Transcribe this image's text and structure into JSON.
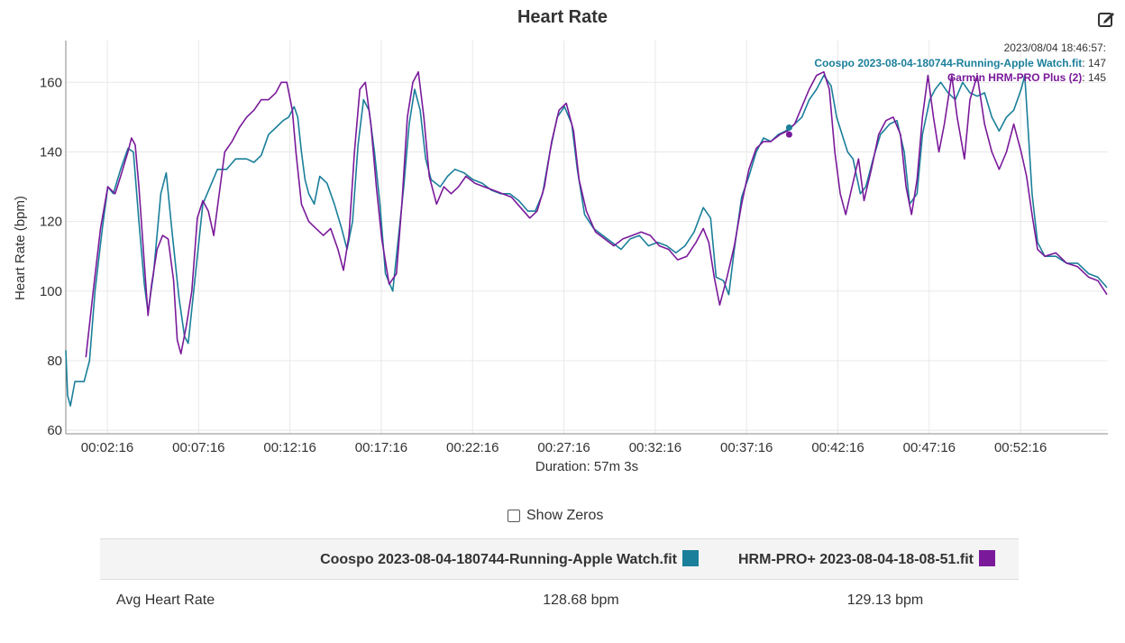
{
  "header": {
    "title": "Heart Rate",
    "edit_icon": "edit-icon"
  },
  "colors": {
    "series1": "#1a7f9a",
    "series2": "#7a1a9a",
    "grid": "#e8e8e8",
    "axis": "#888888"
  },
  "tooltip": {
    "time": "2023/08/04 18:46:57:",
    "rows": [
      {
        "label": "Coospo 2023-08-04-180744-Running-Apple Watch.fit",
        "value": "147"
      },
      {
        "label": "Garmin HRM-PRO Plus (2)",
        "value": "145"
      }
    ]
  },
  "show_zeros": {
    "label": "Show Zeros",
    "checked": false
  },
  "stats_table": {
    "headers": [
      "",
      "Coospo 2023-08-04-180744-Running-Apple Watch.fit",
      "HRM-PRO+ 2023-08-04-18-08-51.fit"
    ],
    "rows": [
      {
        "label": "Avg Heart Rate",
        "values": [
          "128.68 bpm",
          "129.13 bpm"
        ]
      }
    ]
  },
  "chart_data": {
    "type": "line",
    "title": "Heart Rate",
    "xlabel": "Duration: 57m 3s",
    "ylabel": "Heart Rate (bpm)",
    "xlim": [
      0,
      57.05
    ],
    "ylim": [
      59,
      172
    ],
    "yticks": [
      60,
      80,
      100,
      120,
      140,
      160
    ],
    "xticks": [
      {
        "t": 2.27,
        "label": "00:02:16"
      },
      {
        "t": 7.27,
        "label": "00:07:16"
      },
      {
        "t": 12.27,
        "label": "00:12:16"
      },
      {
        "t": 17.27,
        "label": "00:17:16"
      },
      {
        "t": 22.27,
        "label": "00:22:16"
      },
      {
        "t": 27.27,
        "label": "00:27:16"
      },
      {
        "t": 32.27,
        "label": "00:32:16"
      },
      {
        "t": 37.27,
        "label": "00:37:16"
      },
      {
        "t": 42.27,
        "label": "00:42:16"
      },
      {
        "t": 47.27,
        "label": "00:47:16"
      },
      {
        "t": 52.27,
        "label": "00:52:16"
      }
    ],
    "grid": true,
    "legend": "none",
    "series": [
      {
        "name": "Coospo 2023-08-04-180744-Running-Apple Watch.fit",
        "color": "#1a7f9a",
        "points": [
          [
            0,
            83
          ],
          [
            0.1,
            70
          ],
          [
            0.25,
            67
          ],
          [
            0.5,
            74
          ],
          [
            1,
            74
          ],
          [
            1.3,
            80
          ],
          [
            1.6,
            100
          ],
          [
            2,
            118
          ],
          [
            2.3,
            130
          ],
          [
            2.6,
            128
          ],
          [
            3,
            135
          ],
          [
            3.4,
            141
          ],
          [
            3.7,
            140
          ],
          [
            4,
            120
          ],
          [
            4.3,
            102
          ],
          [
            4.5,
            94
          ],
          [
            4.8,
            105
          ],
          [
            5.2,
            128
          ],
          [
            5.5,
            134
          ],
          [
            5.8,
            118
          ],
          [
            6.2,
            98
          ],
          [
            6.5,
            87
          ],
          [
            6.7,
            85
          ],
          [
            7.1,
            105
          ],
          [
            7.5,
            125
          ],
          [
            7.9,
            130
          ],
          [
            8.3,
            135
          ],
          [
            8.8,
            135
          ],
          [
            9.3,
            138
          ],
          [
            9.9,
            138
          ],
          [
            10.3,
            137
          ],
          [
            10.7,
            139
          ],
          [
            11.1,
            145
          ],
          [
            11.5,
            147
          ],
          [
            11.9,
            149
          ],
          [
            12.2,
            150
          ],
          [
            12.5,
            153
          ],
          [
            12.7,
            150
          ],
          [
            12.9,
            140
          ],
          [
            13.1,
            132
          ],
          [
            13.3,
            128
          ],
          [
            13.6,
            125
          ],
          [
            13.9,
            133
          ],
          [
            14.3,
            131
          ],
          [
            14.7,
            125
          ],
          [
            15.1,
            118
          ],
          [
            15.4,
            112
          ],
          [
            15.7,
            120
          ],
          [
            16,
            142
          ],
          [
            16.3,
            155
          ],
          [
            16.6,
            152
          ],
          [
            16.9,
            140
          ],
          [
            17.2,
            125
          ],
          [
            17.5,
            105
          ],
          [
            17.9,
            100
          ],
          [
            18.2,
            115
          ],
          [
            18.5,
            130
          ],
          [
            18.8,
            148
          ],
          [
            19.1,
            158
          ],
          [
            19.4,
            152
          ],
          [
            19.7,
            138
          ],
          [
            20,
            132
          ],
          [
            20.5,
            130
          ],
          [
            20.9,
            133
          ],
          [
            21.3,
            135
          ],
          [
            21.8,
            134
          ],
          [
            22.3,
            132
          ],
          [
            22.8,
            131
          ],
          [
            23.3,
            129
          ],
          [
            23.8,
            128
          ],
          [
            24.3,
            128
          ],
          [
            24.8,
            126
          ],
          [
            25.3,
            123
          ],
          [
            25.7,
            123
          ],
          [
            26.1,
            128
          ],
          [
            26.5,
            140
          ],
          [
            26.9,
            150
          ],
          [
            27.3,
            153
          ],
          [
            27.7,
            148
          ],
          [
            28,
            135
          ],
          [
            28.4,
            122
          ],
          [
            28.9,
            118
          ],
          [
            29.4,
            116
          ],
          [
            29.9,
            114
          ],
          [
            30.4,
            112
          ],
          [
            30.9,
            115
          ],
          [
            31.4,
            116
          ],
          [
            31.9,
            113
          ],
          [
            32.4,
            114
          ],
          [
            32.9,
            113
          ],
          [
            33.4,
            111
          ],
          [
            33.9,
            113
          ],
          [
            34.4,
            117
          ],
          [
            34.9,
            124
          ],
          [
            35.3,
            121
          ],
          [
            35.6,
            104
          ],
          [
            36,
            103
          ],
          [
            36.3,
            99
          ],
          [
            36.6,
            112
          ],
          [
            37,
            127
          ],
          [
            37.4,
            133
          ],
          [
            37.8,
            140
          ],
          [
            38.2,
            144
          ],
          [
            38.6,
            143
          ],
          [
            39,
            145
          ],
          [
            39.4,
            146
          ],
          [
            39.9,
            148
          ],
          [
            40.3,
            150
          ],
          [
            40.7,
            155
          ],
          [
            41.1,
            158
          ],
          [
            41.5,
            162
          ],
          [
            41.9,
            159
          ],
          [
            42.2,
            150
          ],
          [
            42.5,
            145
          ],
          [
            42.8,
            140
          ],
          [
            43.1,
            138
          ],
          [
            43.5,
            128
          ],
          [
            43.8,
            130
          ],
          [
            44.2,
            138
          ],
          [
            44.6,
            145
          ],
          [
            45.1,
            148
          ],
          [
            45.5,
            149
          ],
          [
            45.9,
            140
          ],
          [
            46.2,
            125
          ],
          [
            46.6,
            128
          ],
          [
            46.9,
            145
          ],
          [
            47.3,
            155
          ],
          [
            47.6,
            158
          ],
          [
            47.9,
            160
          ],
          [
            48.3,
            157
          ],
          [
            48.7,
            155
          ],
          [
            49.1,
            160
          ],
          [
            49.5,
            157
          ],
          [
            49.9,
            156
          ],
          [
            50.3,
            157
          ],
          [
            50.7,
            150
          ],
          [
            51.1,
            146
          ],
          [
            51.5,
            150
          ],
          [
            51.9,
            152
          ],
          [
            52.3,
            158
          ],
          [
            52.5,
            162
          ],
          [
            52.7,
            145
          ],
          [
            52.9,
            128
          ],
          [
            53.2,
            114
          ],
          [
            53.6,
            110
          ],
          [
            54.2,
            110
          ],
          [
            54.8,
            108
          ],
          [
            55.4,
            108
          ],
          [
            56,
            105
          ],
          [
            56.5,
            104
          ],
          [
            57,
            101
          ]
        ]
      },
      {
        "name": "Garmin HRM-PRO Plus (2)",
        "color": "#7a1a9a",
        "points": [
          [
            1.1,
            81
          ],
          [
            1.5,
            100
          ],
          [
            1.9,
            118
          ],
          [
            2.3,
            130
          ],
          [
            2.7,
            128
          ],
          [
            3,
            133
          ],
          [
            3.4,
            140
          ],
          [
            3.6,
            144
          ],
          [
            3.8,
            142
          ],
          [
            4,
            130
          ],
          [
            4.3,
            108
          ],
          [
            4.5,
            93
          ],
          [
            4.7,
            102
          ],
          [
            5,
            112
          ],
          [
            5.3,
            116
          ],
          [
            5.6,
            115
          ],
          [
            5.9,
            103
          ],
          [
            6.1,
            86
          ],
          [
            6.3,
            82
          ],
          [
            6.6,
            90
          ],
          [
            6.9,
            100
          ],
          [
            7.2,
            121
          ],
          [
            7.5,
            126
          ],
          [
            7.8,
            123
          ],
          [
            8.1,
            116
          ],
          [
            8.4,
            128
          ],
          [
            8.7,
            140
          ],
          [
            9.1,
            143
          ],
          [
            9.5,
            147
          ],
          [
            9.9,
            150
          ],
          [
            10.3,
            152
          ],
          [
            10.7,
            155
          ],
          [
            11.1,
            155
          ],
          [
            11.5,
            157
          ],
          [
            11.8,
            160
          ],
          [
            12.1,
            160
          ],
          [
            12.4,
            152
          ],
          [
            12.6,
            140
          ],
          [
            12.9,
            125
          ],
          [
            13.3,
            120
          ],
          [
            13.7,
            118
          ],
          [
            14.1,
            116
          ],
          [
            14.5,
            118
          ],
          [
            14.9,
            112
          ],
          [
            15.2,
            106
          ],
          [
            15.5,
            116
          ],
          [
            15.8,
            140
          ],
          [
            16.1,
            158
          ],
          [
            16.4,
            160
          ],
          [
            16.7,
            148
          ],
          [
            17,
            130
          ],
          [
            17.3,
            115
          ],
          [
            17.7,
            102
          ],
          [
            18.1,
            105
          ],
          [
            18.4,
            125
          ],
          [
            18.7,
            150
          ],
          [
            19,
            160
          ],
          [
            19.3,
            163
          ],
          [
            19.6,
            150
          ],
          [
            19.9,
            133
          ],
          [
            20.3,
            125
          ],
          [
            20.7,
            130
          ],
          [
            21.1,
            128
          ],
          [
            21.5,
            130
          ],
          [
            21.9,
            133
          ],
          [
            22.4,
            131
          ],
          [
            22.9,
            130
          ],
          [
            23.4,
            129
          ],
          [
            23.9,
            128
          ],
          [
            24.4,
            127
          ],
          [
            24.9,
            124
          ],
          [
            25.4,
            121
          ],
          [
            25.8,
            123
          ],
          [
            26.2,
            130
          ],
          [
            26.6,
            143
          ],
          [
            27,
            152
          ],
          [
            27.4,
            154
          ],
          [
            27.8,
            146
          ],
          [
            28.1,
            132
          ],
          [
            28.5,
            123
          ],
          [
            29,
            117
          ],
          [
            29.5,
            115
          ],
          [
            30,
            113
          ],
          [
            30.5,
            115
          ],
          [
            31,
            116
          ],
          [
            31.5,
            117
          ],
          [
            32,
            116
          ],
          [
            32.5,
            113
          ],
          [
            33,
            112
          ],
          [
            33.5,
            109
          ],
          [
            34,
            110
          ],
          [
            34.5,
            114
          ],
          [
            34.9,
            118
          ],
          [
            35.2,
            114
          ],
          [
            35.5,
            104
          ],
          [
            35.8,
            96
          ],
          [
            36.2,
            104
          ],
          [
            36.6,
            113
          ],
          [
            37,
            125
          ],
          [
            37.4,
            135
          ],
          [
            37.8,
            141
          ],
          [
            38.2,
            143
          ],
          [
            38.6,
            143
          ],
          [
            39.1,
            145
          ],
          [
            39.5,
            146
          ],
          [
            39.9,
            148
          ],
          [
            40.3,
            153
          ],
          [
            40.7,
            158
          ],
          [
            41.1,
            162
          ],
          [
            41.5,
            163
          ],
          [
            41.8,
            158
          ],
          [
            42.1,
            140
          ],
          [
            42.4,
            128
          ],
          [
            42.7,
            122
          ],
          [
            43,
            129
          ],
          [
            43.4,
            138
          ],
          [
            43.7,
            126
          ],
          [
            44.1,
            135
          ],
          [
            44.5,
            145
          ],
          [
            44.9,
            149
          ],
          [
            45.3,
            150
          ],
          [
            45.7,
            145
          ],
          [
            46,
            130
          ],
          [
            46.3,
            122
          ],
          [
            46.6,
            132
          ],
          [
            46.9,
            150
          ],
          [
            47.2,
            162
          ],
          [
            47.5,
            150
          ],
          [
            47.8,
            140
          ],
          [
            48.1,
            148
          ],
          [
            48.5,
            162
          ],
          [
            48.8,
            150
          ],
          [
            49.2,
            138
          ],
          [
            49.5,
            155
          ],
          [
            49.9,
            162
          ],
          [
            50.3,
            148
          ],
          [
            50.7,
            140
          ],
          [
            51.1,
            135
          ],
          [
            51.5,
            140
          ],
          [
            51.9,
            148
          ],
          [
            52.3,
            140
          ],
          [
            52.6,
            133
          ],
          [
            52.9,
            122
          ],
          [
            53.2,
            112
          ],
          [
            53.6,
            110
          ],
          [
            54.2,
            111
          ],
          [
            54.8,
            108
          ],
          [
            55.4,
            107
          ],
          [
            56,
            104
          ],
          [
            56.5,
            103
          ],
          [
            57,
            99
          ]
        ]
      }
    ]
  }
}
